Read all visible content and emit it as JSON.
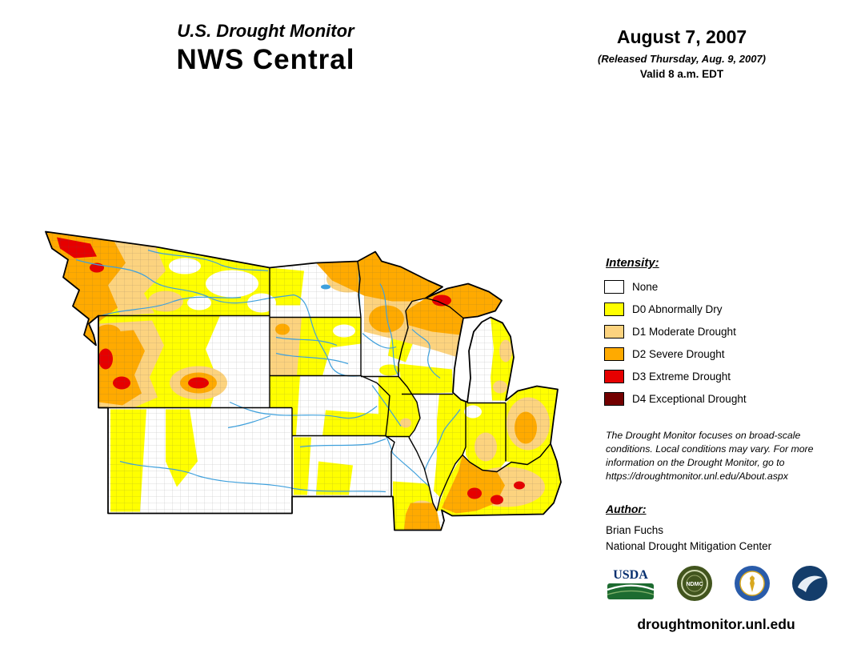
{
  "header": {
    "title_line1": "U.S. Drought Monitor",
    "title_line2": "NWS Central",
    "date": "August 7, 2007",
    "released": "(Released Thursday, Aug. 9, 2007)",
    "valid": "Valid 8 a.m. EDT"
  },
  "legend": {
    "heading": "Intensity:",
    "items": [
      {
        "code": "",
        "label": "None",
        "color": "#FFFFFF"
      },
      {
        "code": "D0",
        "label": "D0 Abnormally Dry",
        "color": "#FFFF00"
      },
      {
        "code": "D1",
        "label": "D1 Moderate Drought",
        "color": "#FCD37F"
      },
      {
        "code": "D2",
        "label": "D2 Severe Drought",
        "color": "#FFAA00"
      },
      {
        "code": "D3",
        "label": "D3 Extreme Drought",
        "color": "#E60000"
      },
      {
        "code": "D4",
        "label": "D4 Exceptional Drought",
        "color": "#730000"
      }
    ]
  },
  "disclaimer": "The Drought Monitor focuses on broad-scale conditions. Local conditions may vary. For more information on the Drought Monitor, go to https://droughtmonitor.unl.edu/About.aspx",
  "author": {
    "heading": "Author:",
    "name": "Brian Fuchs",
    "org": "National Drought Mitigation Center"
  },
  "logos": [
    {
      "name": "usda-logo",
      "label": "USDA"
    },
    {
      "name": "ndmc-logo",
      "label": "NDMC"
    },
    {
      "name": "commerce-seal-logo",
      "label": ""
    },
    {
      "name": "noaa-logo",
      "label": ""
    }
  ],
  "footer": {
    "url": "droughtmonitor.unl.edu"
  },
  "map": {
    "region_label": "NWS Central",
    "river_color": "#3FA0DC"
  }
}
